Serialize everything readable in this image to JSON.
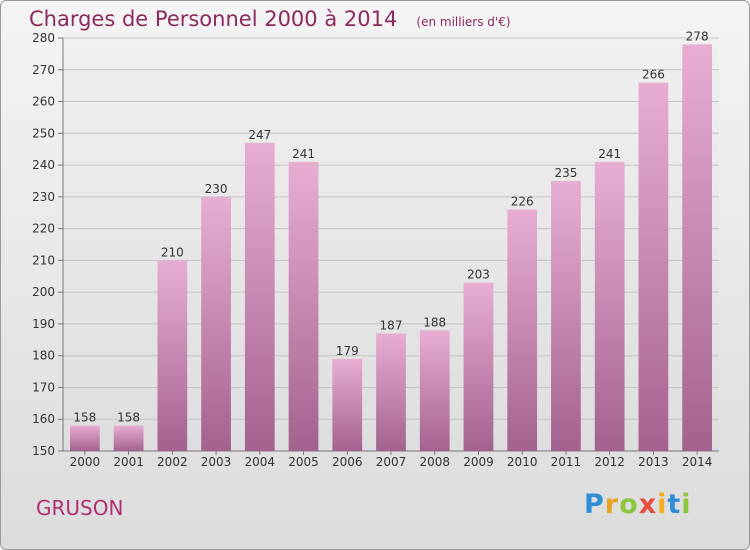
{
  "header": {
    "title": "Charges de Personnel 2000 à 2014",
    "subtitle": "(en milliers d'€)"
  },
  "footer": {
    "commune": "GRUSON",
    "logo": [
      "P",
      "r",
      "o",
      "x",
      "i",
      "t",
      "i"
    ]
  },
  "colors": {
    "title": "#8b2a5c",
    "bar_top": "#e8aed2",
    "bar_bottom": "#a3628e",
    "commune": "#b0306e"
  },
  "chart_data": {
    "type": "bar",
    "categories": [
      "2000",
      "2001",
      "2002",
      "2003",
      "2004",
      "2005",
      "2006",
      "2007",
      "2008",
      "2009",
      "2010",
      "2011",
      "2012",
      "2013",
      "2014"
    ],
    "values": [
      158,
      158,
      210,
      230,
      247,
      241,
      179,
      187,
      188,
      203,
      226,
      235,
      241,
      266,
      278
    ],
    "ylim": [
      150,
      280
    ],
    "yticks": [
      150,
      160,
      170,
      180,
      190,
      200,
      210,
      220,
      230,
      240,
      250,
      260,
      270,
      280
    ],
    "grid": true,
    "data_labels": true
  }
}
